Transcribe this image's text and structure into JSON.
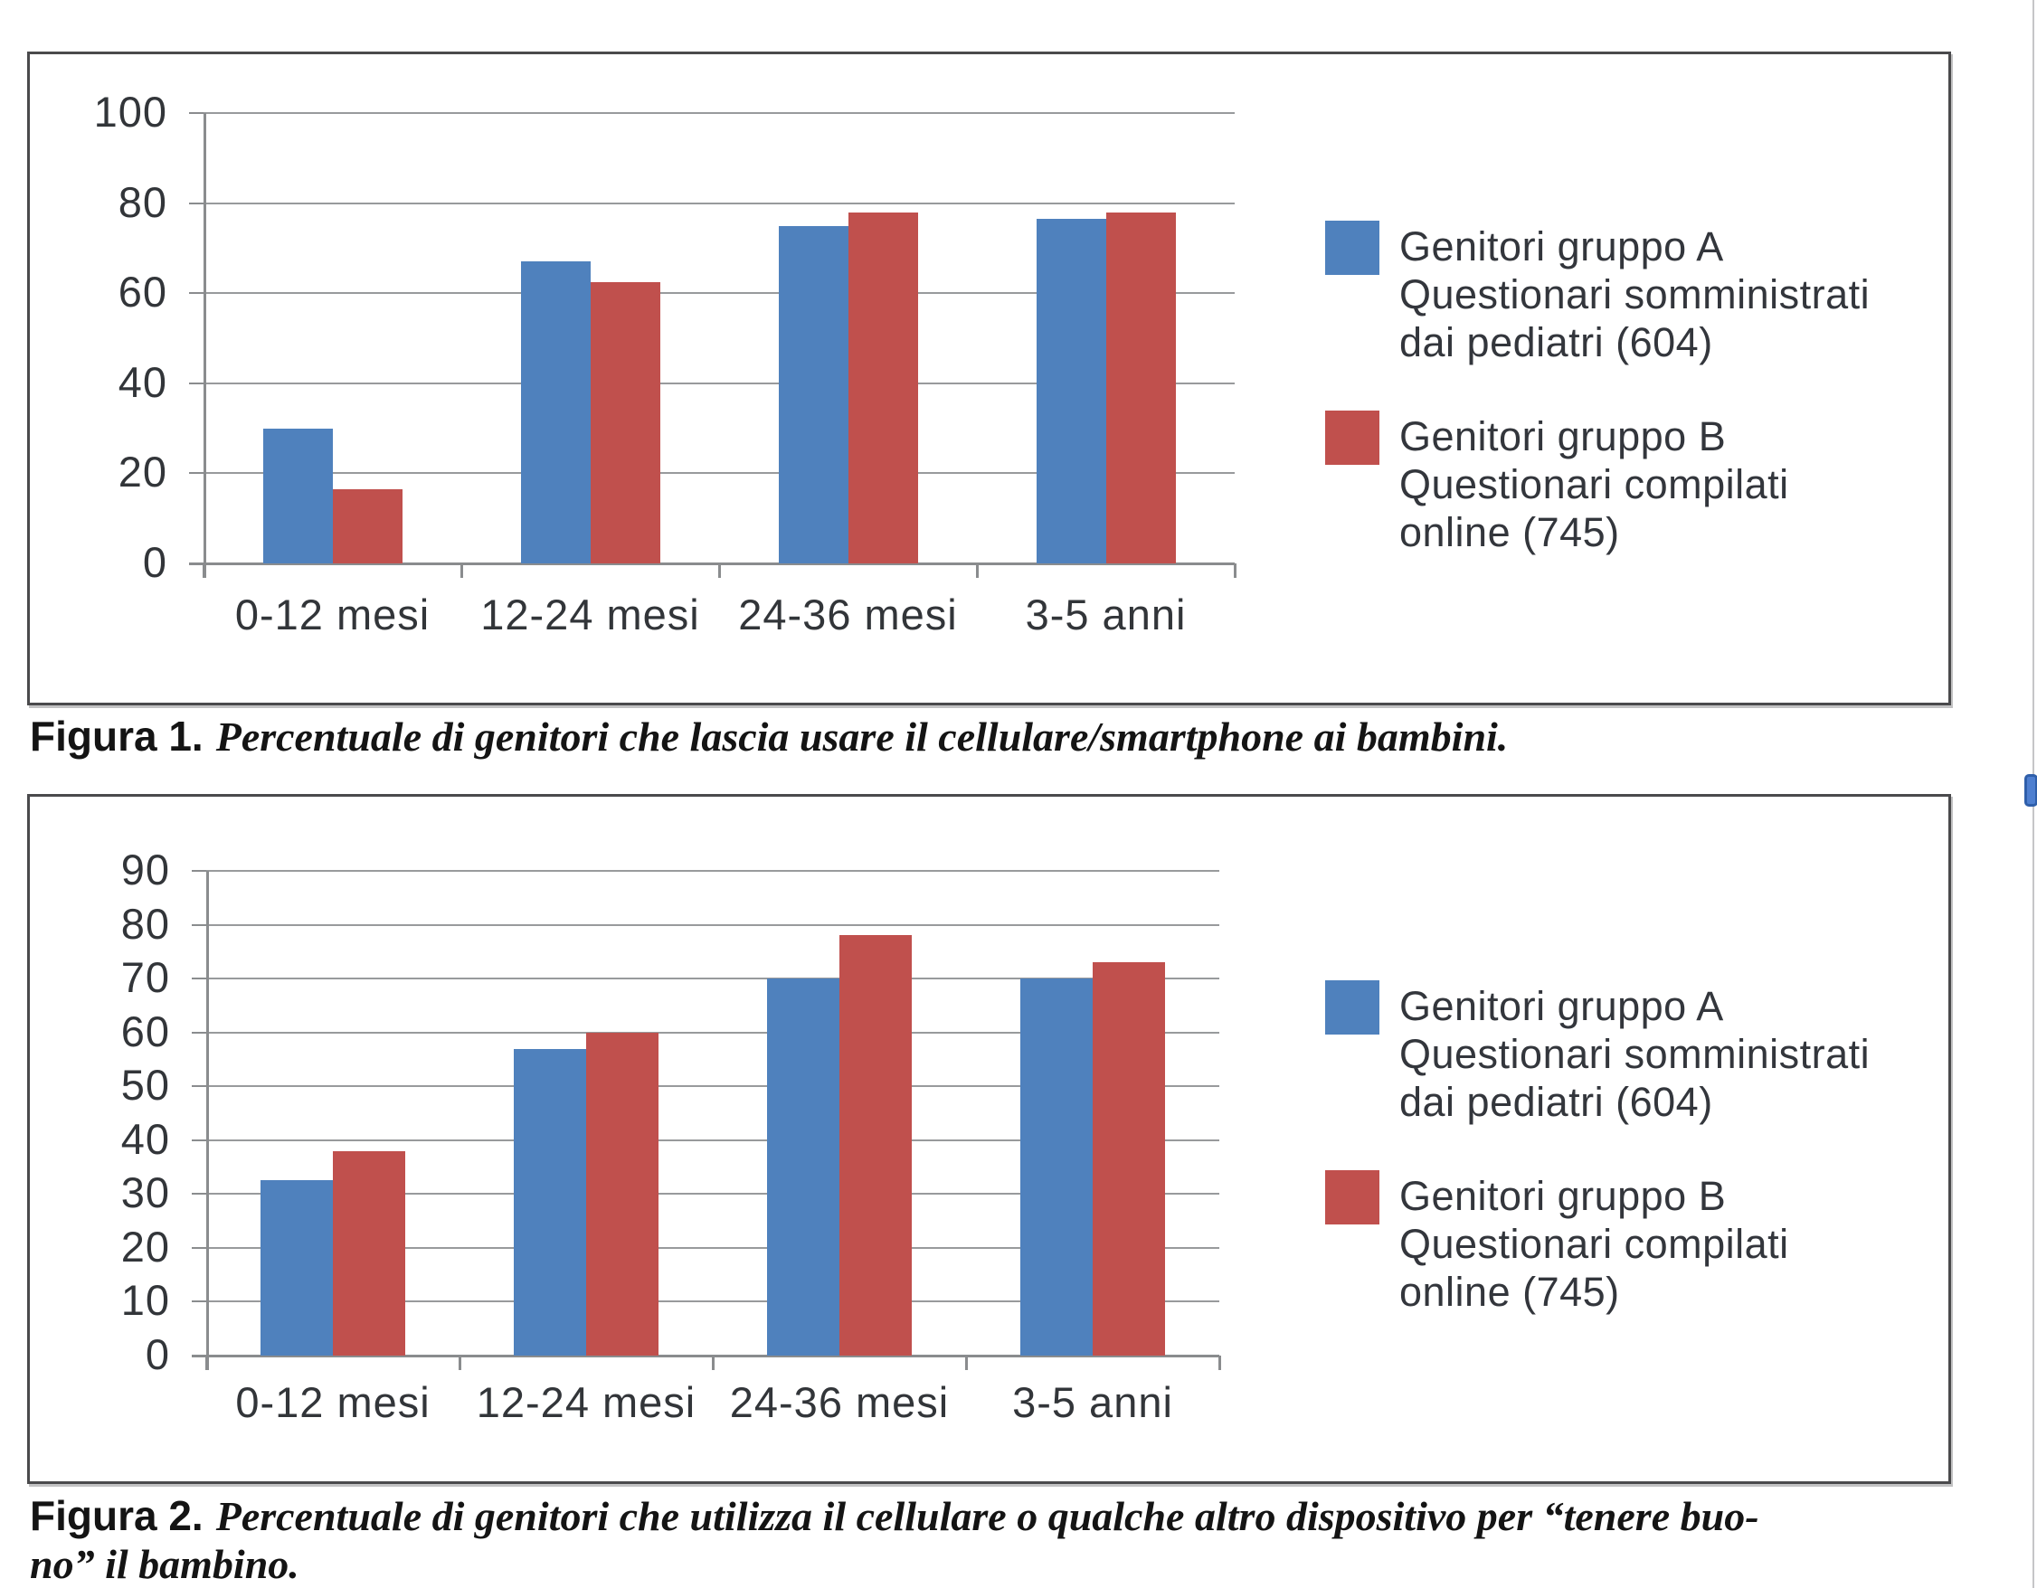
{
  "colors": {
    "series_a": "#4f81bd",
    "series_b": "#c0504d",
    "gridline": "#989a9c",
    "axis": "#8a8c8e",
    "panel_border": "#4a4a4c",
    "label_text": "#323539",
    "marker_blue": "#4e7fd0"
  },
  "chart_data": [
    {
      "id": "figura-1",
      "type": "bar",
      "title": "",
      "xlabel": "",
      "ylabel": "",
      "grid": true,
      "legend_position": "right",
      "categories": [
        "0-12 mesi",
        "12-24 mesi",
        "24-36 mesi",
        "3-5 anni"
      ],
      "ylim": [
        0,
        100
      ],
      "yticks": [
        0,
        20,
        40,
        60,
        80,
        100
      ],
      "series": [
        {
          "name": "Genitori gruppo A Questionari somministrati dai pediatri (604)",
          "label_lines": [
            "Genitori gruppo A",
            "Questionari somministrati",
            "dai pediatri (604)"
          ],
          "color": "#4f81bd",
          "values": [
            30,
            67,
            75,
            76.5
          ]
        },
        {
          "name": "Genitori gruppo B Questionari compilati online (745)",
          "label_lines": [
            "Genitori gruppo B",
            "Questionari compilati",
            "online (745)"
          ],
          "color": "#c0504d",
          "values": [
            16.5,
            62.5,
            78,
            78
          ]
        }
      ]
    },
    {
      "id": "figura-2",
      "type": "bar",
      "title": "",
      "xlabel": "",
      "ylabel": "",
      "grid": true,
      "legend_position": "right",
      "categories": [
        "0-12 mesi",
        "12-24 mesi",
        "24-36 mesi",
        "3-5 anni"
      ],
      "ylim": [
        0,
        90
      ],
      "yticks": [
        0,
        10,
        20,
        30,
        40,
        50,
        60,
        70,
        80,
        90
      ],
      "series": [
        {
          "name": "Genitori gruppo A Questionari somministrati dai pediatri (604)",
          "label_lines": [
            "Genitori gruppo A",
            "Questionari somministrati",
            "dai pediatri (604)"
          ],
          "color": "#4f81bd",
          "values": [
            32.5,
            57,
            70,
            70
          ]
        },
        {
          "name": "Genitori gruppo B Questionari compilati online (745)",
          "label_lines": [
            "Genitori gruppo B",
            "Questionari compilati",
            "online (745)"
          ],
          "color": "#c0504d",
          "values": [
            38,
            60,
            78,
            73
          ]
        }
      ]
    }
  ],
  "captions": [
    {
      "label": "Figura 1.",
      "lines": [
        "Percentuale di genitori che lascia usare il cellulare/smartphone ai bambini."
      ]
    },
    {
      "label": "Figura 2.",
      "lines": [
        "Percentuale di genitori che utilizza il cellulare o qualche altro dispositivo per “tenere buo-",
        "no” il bambino."
      ]
    }
  ]
}
